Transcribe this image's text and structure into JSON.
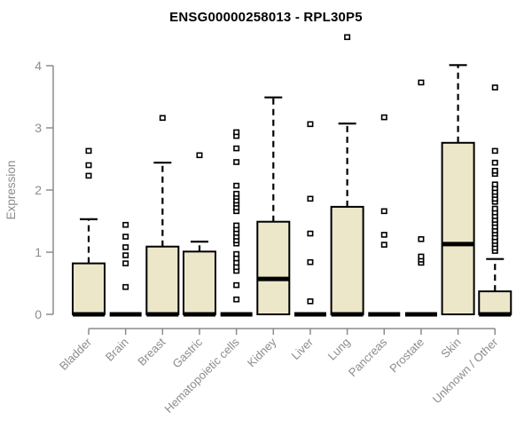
{
  "chart_data": {
    "type": "boxplot",
    "title": "ENSG00000258013 - RPL30P5",
    "xlabel": "",
    "ylabel": "Expression",
    "ylim": [
      0,
      4
    ],
    "y_ticks": [
      "0",
      "1",
      "2",
      "3",
      "4"
    ],
    "grid": false,
    "legend": "none",
    "colors": {
      "box_fill": "#EDE7CA",
      "box_stroke": "#000000",
      "median": "#000000",
      "axis": "#8C8C8C",
      "title": "#000000",
      "background": "#FFFFFF"
    },
    "categories": [
      "Bladder",
      "Brain",
      "Breast",
      "Gastric",
      "Hematopoietic cells",
      "Kidney",
      "Liver",
      "Lung",
      "Pancreas",
      "Prostate",
      "Skin",
      "Unknown / Other"
    ],
    "boxes": [
      {
        "category": "Bladder",
        "q1": 0,
        "median": 0,
        "q3": 0.82,
        "whisker_low": 0,
        "whisker_high": 1.53,
        "outliers": [
          2.23,
          2.4,
          2.63
        ]
      },
      {
        "category": "Brain",
        "q1": 0,
        "median": 0,
        "q3": 0,
        "whisker_low": 0,
        "whisker_high": 0,
        "outliers": [
          0.44,
          0.82,
          0.95,
          1.08,
          1.25,
          1.44
        ]
      },
      {
        "category": "Breast",
        "q1": 0,
        "median": 0,
        "q3": 1.09,
        "whisker_low": 0,
        "whisker_high": 2.44,
        "outliers": [
          3.16
        ]
      },
      {
        "category": "Gastric",
        "q1": 0,
        "median": 0,
        "q3": 1.01,
        "whisker_low": 0,
        "whisker_high": 1.17,
        "outliers": [
          2.56
        ]
      },
      {
        "category": "Hematopoietic cells",
        "q1": 0,
        "median": 0,
        "q3": 0,
        "whisker_low": 0,
        "whisker_high": 0,
        "outliers": [
          0.24,
          0.47,
          0.7,
          0.76,
          0.83,
          0.9,
          0.97,
          1.14,
          1.19,
          1.25,
          1.31,
          1.37,
          1.43,
          1.66,
          1.72,
          1.78,
          1.83,
          1.89,
          1.94,
          2.07,
          2.45,
          2.67,
          2.87,
          2.93
        ]
      },
      {
        "category": "Kidney",
        "q1": 0,
        "median": 0.57,
        "q3": 1.49,
        "whisker_low": 0,
        "whisker_high": 3.49,
        "outliers": []
      },
      {
        "category": "Liver",
        "q1": 0,
        "median": 0,
        "q3": 0,
        "whisker_low": 0,
        "whisker_high": 0,
        "outliers": [
          0.21,
          0.84,
          1.3,
          1.86,
          3.06
        ]
      },
      {
        "category": "Lung",
        "q1": 0,
        "median": 0,
        "q3": 1.73,
        "whisker_low": 0,
        "whisker_high": 3.07,
        "outliers": [
          4.46
        ]
      },
      {
        "category": "Pancreas",
        "q1": 0,
        "median": 0,
        "q3": 0,
        "whisker_low": 0,
        "whisker_high": 0,
        "outliers": [
          1.12,
          1.28,
          1.66,
          3.17
        ]
      },
      {
        "category": "Prostate",
        "q1": 0,
        "median": 0,
        "q3": 0,
        "whisker_low": 0,
        "whisker_high": 0,
        "outliers": [
          0.83,
          0.88,
          0.93,
          1.21,
          3.73
        ]
      },
      {
        "category": "Skin",
        "q1": 0,
        "median": 1.13,
        "q3": 2.76,
        "whisker_low": 0,
        "whisker_high": 4.01,
        "outliers": []
      },
      {
        "category": "Unknown / Other",
        "q1": 0,
        "median": 0,
        "q3": 0.37,
        "whisker_low": 0,
        "whisker_high": 0.89,
        "outliers": [
          1.02,
          1.07,
          1.13,
          1.18,
          1.24,
          1.3,
          1.35,
          1.41,
          1.47,
          1.52,
          1.58,
          1.64,
          1.7,
          1.81,
          1.86,
          1.92,
          1.97,
          2.03,
          2.09,
          2.26,
          2.31,
          2.44,
          2.63,
          3.65
        ]
      }
    ]
  }
}
